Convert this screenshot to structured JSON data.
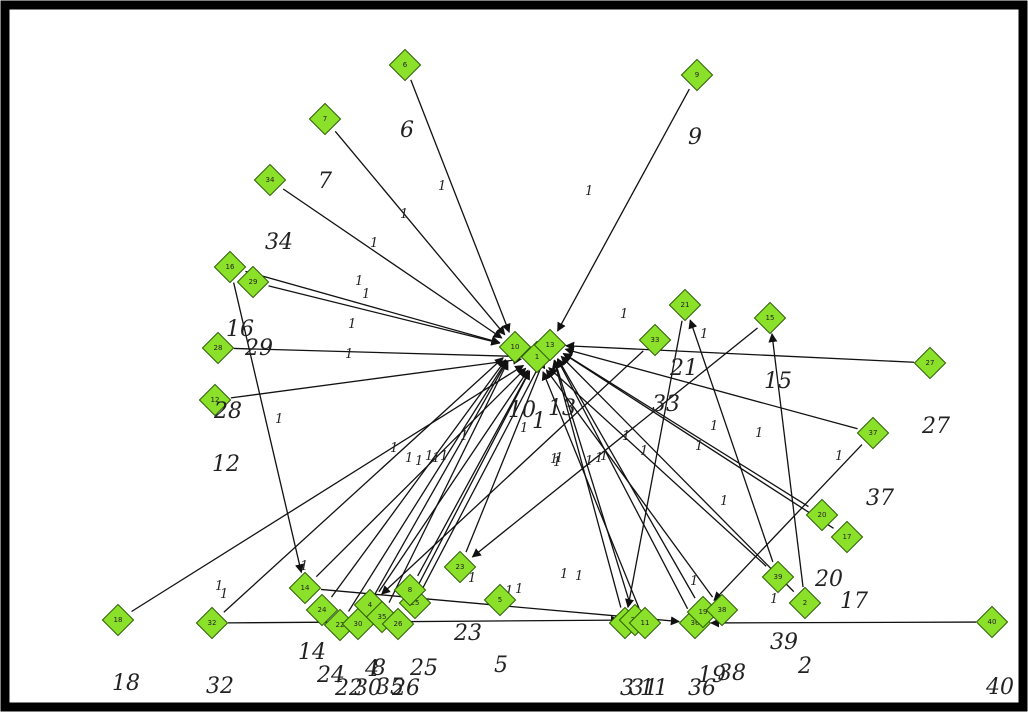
{
  "diagram": {
    "type": "network-graph",
    "node_color": "#8be02a",
    "edge_color": "#111111",
    "frame_color": "#000000",
    "nodes": [
      {
        "id": "6",
        "label": "6"
      },
      {
        "id": "9",
        "label": "9"
      },
      {
        "id": "7",
        "label": "7"
      },
      {
        "id": "34",
        "label": "34"
      },
      {
        "id": "16",
        "label": "16"
      },
      {
        "id": "29",
        "label": "29"
      },
      {
        "id": "28",
        "label": "28"
      },
      {
        "id": "12",
        "label": "12"
      },
      {
        "id": "10",
        "label": "10"
      },
      {
        "id": "1",
        "label": "1"
      },
      {
        "id": "13",
        "label": "13"
      },
      {
        "id": "33",
        "label": "33"
      },
      {
        "id": "21",
        "label": "21"
      },
      {
        "id": "15",
        "label": "15"
      },
      {
        "id": "27",
        "label": "27"
      },
      {
        "id": "37",
        "label": "37"
      },
      {
        "id": "20",
        "label": "20"
      },
      {
        "id": "17",
        "label": "17"
      },
      {
        "id": "39",
        "label": "39"
      },
      {
        "id": "2",
        "label": "2"
      },
      {
        "id": "40",
        "label": "40"
      },
      {
        "id": "18",
        "label": "18"
      },
      {
        "id": "32",
        "label": "32"
      },
      {
        "id": "14",
        "label": "14"
      },
      {
        "id": "24",
        "label": "24"
      },
      {
        "id": "22",
        "label": "22"
      },
      {
        "id": "30",
        "label": "30"
      },
      {
        "id": "4",
        "label": "4"
      },
      {
        "id": "35",
        "label": "35"
      },
      {
        "id": "26",
        "label": "26"
      },
      {
        "id": "25",
        "label": "25"
      },
      {
        "id": "23",
        "label": "23"
      },
      {
        "id": "8",
        "label": "8"
      },
      {
        "id": "3",
        "label": "3"
      },
      {
        "id": "31",
        "label": "31"
      },
      {
        "id": "11",
        "label": "11"
      },
      {
        "id": "36",
        "label": "36"
      },
      {
        "id": "19",
        "label": "19"
      },
      {
        "id": "38",
        "label": "38"
      },
      {
        "id": "5",
        "label": "5"
      }
    ],
    "edge_weight_label": "1"
  }
}
